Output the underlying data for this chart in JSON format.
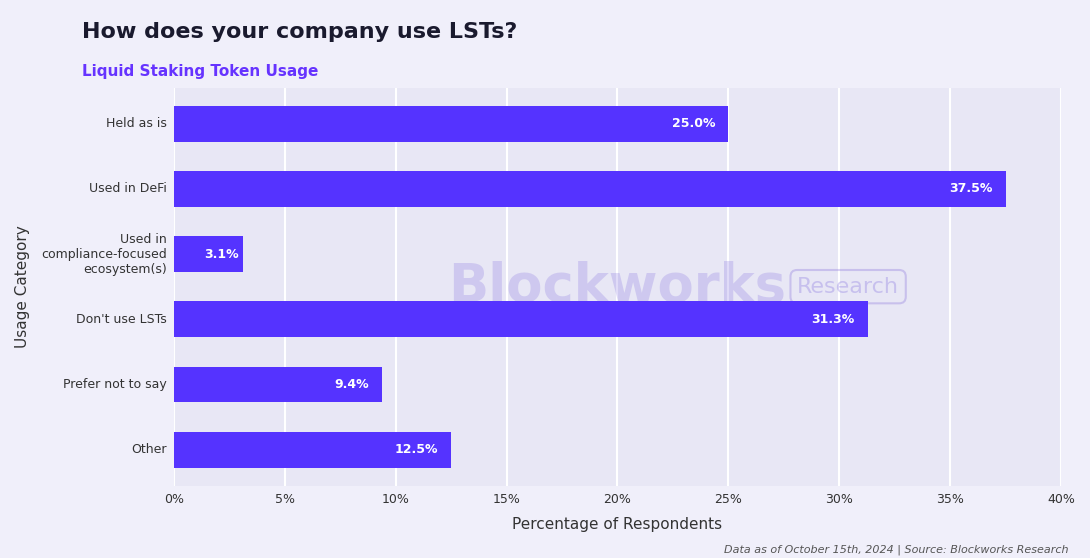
{
  "title": "How does your company use LSTs?",
  "subtitle": "Liquid Staking Token Usage",
  "title_color": "#1a1a2e",
  "subtitle_color": "#6633ff",
  "categories": [
    "Other",
    "Prefer not to say",
    "Don't use LSTs",
    "Used in\ncompliance-focused\necosystem(s)",
    "Used in DeFi",
    "Held as is"
  ],
  "values": [
    12.5,
    9.4,
    31.3,
    3.1,
    37.5,
    25.0
  ],
  "bar_color": "#5533ff",
  "bar_label_color": "#ffffff",
  "background_color": "#f0effa",
  "plot_background_color": "#e8e7f5",
  "grid_color": "#ffffff",
  "xlabel": "Percentage of Respondents",
  "ylabel": "Usage Category",
  "xlim": [
    0,
    40
  ],
  "xtick_labels": [
    "0%",
    "5%",
    "10%",
    "15%",
    "20%",
    "25%",
    "30%",
    "35%",
    "40%"
  ],
  "xtick_values": [
    0,
    5,
    10,
    15,
    20,
    25,
    30,
    35,
    40
  ],
  "footnote": "Data as of October 15th, 2024 | Source: Blockworks Research",
  "watermark_main": "Blockworks",
  "watermark_sub": "Research",
  "bar_label_fontsize": 9,
  "title_fontsize": 16,
  "subtitle_fontsize": 11,
  "axis_label_fontsize": 11,
  "tick_fontsize": 9,
  "footnote_fontsize": 8
}
